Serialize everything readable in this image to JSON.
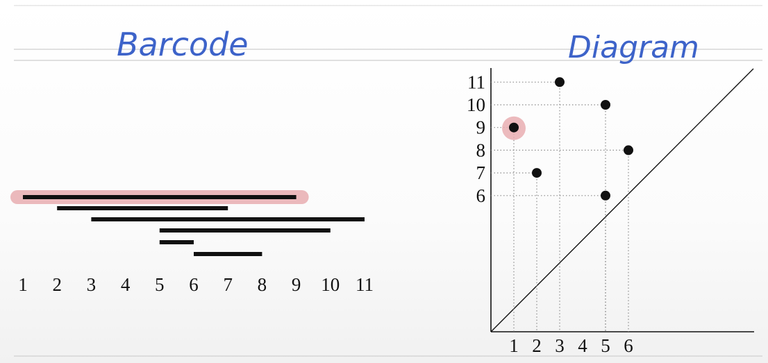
{
  "headings": {
    "left": "Barcode",
    "right": "Diagram"
  },
  "colors": {
    "ink": "#111111",
    "handwriting": "#3d63c9",
    "highlight": "#e9aeb2",
    "rule": "#cfcfcf",
    "grid": "#8a8a8a"
  },
  "chart_data": [
    {
      "type": "barcode",
      "axis_ticks": [
        "1",
        "2",
        "3",
        "4",
        "5",
        "6",
        "7",
        "8",
        "9",
        "10",
        "11"
      ],
      "bars": [
        {
          "start": 1,
          "end": 9,
          "highlighted": true
        },
        {
          "start": 2,
          "end": 7
        },
        {
          "start": 3,
          "end": 11
        },
        {
          "start": 5,
          "end": 10
        },
        {
          "start": 5,
          "end": 6
        },
        {
          "start": 6,
          "end": 8
        }
      ]
    },
    {
      "type": "scatter",
      "x_ticks": [
        "1",
        "2",
        "3",
        "4",
        "5",
        "6"
      ],
      "y_ticks": [
        "6",
        "7",
        "8",
        "9",
        "10",
        "11"
      ],
      "points": [
        {
          "x": 1,
          "y": 9,
          "highlighted": true
        },
        {
          "x": 2,
          "y": 7
        },
        {
          "x": 3,
          "y": 11
        },
        {
          "x": 5,
          "y": 10
        },
        {
          "x": 5,
          "y": 6
        },
        {
          "x": 6,
          "y": 8
        }
      ],
      "diagonal": true,
      "grid": "dotted guides"
    }
  ]
}
